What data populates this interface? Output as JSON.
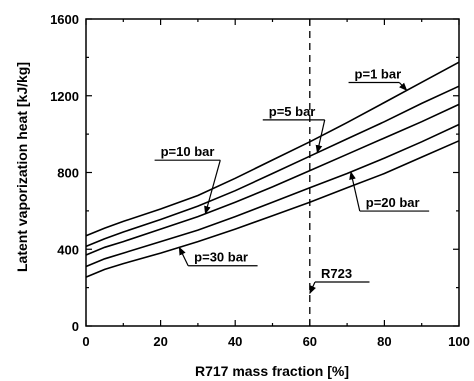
{
  "chart_data": {
    "type": "line",
    "xlabel": "R717 mass fraction [%]",
    "ylabel": "Latent vaporization heat [kJ/kg]",
    "xlim": [
      0,
      100
    ],
    "ylim": [
      0,
      1600
    ],
    "xticks": [
      0,
      20,
      40,
      60,
      80,
      100
    ],
    "yticks": [
      0,
      400,
      800,
      1200,
      1600
    ],
    "grid": false,
    "legend": "none",
    "series": [
      {
        "name": "p=1 bar",
        "x": [
          0,
          5,
          10,
          20,
          30,
          40,
          50,
          60,
          70,
          80,
          90,
          100
        ],
        "y": [
          470,
          510,
          545,
          610,
          680,
          770,
          865,
          960,
          1060,
          1165,
          1270,
          1375
        ]
      },
      {
        "name": "p=5 bar",
        "x": [
          0,
          5,
          10,
          20,
          30,
          40,
          50,
          60,
          70,
          80,
          90,
          100
        ],
        "y": [
          415,
          455,
          490,
          555,
          625,
          705,
          795,
          885,
          975,
          1065,
          1160,
          1250
        ]
      },
      {
        "name": "p=10 bar",
        "x": [
          0,
          5,
          10,
          20,
          30,
          40,
          50,
          60,
          70,
          80,
          90,
          100
        ],
        "y": [
          370,
          410,
          440,
          505,
          570,
          645,
          725,
          810,
          895,
          980,
          1065,
          1155
        ]
      },
      {
        "name": "p=20 bar",
        "x": [
          0,
          5,
          10,
          20,
          30,
          40,
          50,
          60,
          70,
          80,
          90,
          100
        ],
        "y": [
          310,
          350,
          380,
          440,
          500,
          570,
          645,
          720,
          795,
          875,
          960,
          1050
        ]
      },
      {
        "name": "p=30 bar",
        "x": [
          0,
          5,
          10,
          20,
          30,
          40,
          50,
          60,
          70,
          80,
          90,
          100
        ],
        "y": [
          255,
          295,
          325,
          380,
          440,
          505,
          575,
          645,
          720,
          795,
          880,
          965
        ]
      }
    ],
    "reference_line": {
      "x": 60,
      "label": "R723"
    },
    "annotations": [
      {
        "text": "p=1 bar",
        "target_series": 0,
        "target_x": 86,
        "label_at": [
          72,
          1290
        ],
        "underline_to_x": 84
      },
      {
        "text": "p=5 bar",
        "target_series": 1,
        "target_x": 62,
        "label_at": [
          49,
          1095
        ],
        "underline_to_x": 64
      },
      {
        "text": "p=10 bar",
        "target_series": 2,
        "target_x": 32,
        "label_at": [
          20,
          885
        ],
        "underline_to_x": 36
      },
      {
        "text": "p=20 bar",
        "target_series": 3,
        "target_x": 71,
        "label_at": [
          75,
          620
        ],
        "underline_to_x": 92
      },
      {
        "text": "p=30 bar",
        "target_series": 4,
        "target_x": 25,
        "label_at": [
          29,
          335
        ],
        "underline_to_x": 46
      },
      {
        "text": "R723",
        "target_series": null,
        "target_x": 60,
        "target_y": 170,
        "label_at": [
          63,
          250
        ],
        "underline_to_x": 76
      }
    ]
  }
}
